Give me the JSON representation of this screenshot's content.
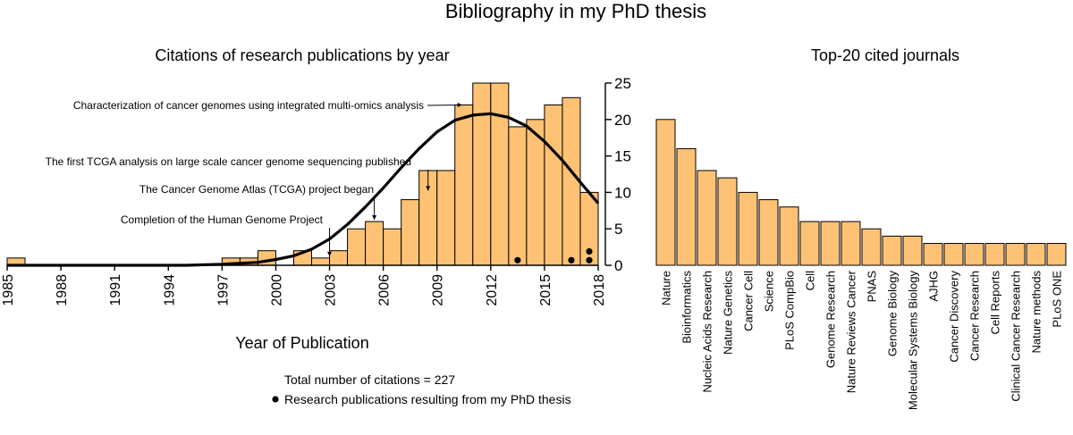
{
  "main_title": "Bibliography in my PhD thesis",
  "chart_data": [
    {
      "type": "bar",
      "title": "Citations of research publications by year",
      "xlabel": "Year of Publication",
      "ylabel": "",
      "x": [
        1985,
        1986,
        1987,
        1988,
        1989,
        1990,
        1991,
        1992,
        1993,
        1994,
        1995,
        1996,
        1997,
        1998,
        1999,
        2000,
        2001,
        2002,
        2003,
        2004,
        2005,
        2006,
        2007,
        2008,
        2009,
        2010,
        2011,
        2012,
        2013,
        2014,
        2015,
        2016,
        2017
      ],
      "values": [
        1,
        0,
        0,
        0,
        0,
        0,
        0,
        0,
        0,
        0,
        0,
        0,
        1,
        1,
        2,
        0,
        2,
        1,
        2,
        5,
        6,
        5,
        9,
        13,
        13,
        22,
        25,
        25,
        19,
        20,
        22,
        23,
        10
      ],
      "xlim": [
        1985,
        2018
      ],
      "ylim": [
        0,
        25
      ],
      "x_tick_labels": [
        "1985",
        "1988",
        "1991",
        "1994",
        "1997",
        "2000",
        "2003",
        "2006",
        "2009",
        "2012",
        "2015",
        "2018"
      ],
      "y_tick_labels": [
        "0",
        "5",
        "10",
        "15",
        "20",
        "25"
      ],
      "y_axis_side": "right",
      "trend_line": {
        "x": [
          1985,
          1990,
          1995,
          1997,
          1999,
          2000,
          2001,
          2002,
          2003,
          2004,
          2005,
          2006,
          2007,
          2008,
          2009,
          2010,
          2011,
          2012,
          2013,
          2014,
          2015,
          2016,
          2017,
          2018
        ],
        "y": [
          0,
          0,
          0,
          0.15,
          0.4,
          0.8,
          1.3,
          2.2,
          3.6,
          5.6,
          8.0,
          10.6,
          13.4,
          16.0,
          18.3,
          19.9,
          20.6,
          20.8,
          20.3,
          19.1,
          17.0,
          14.4,
          11.4,
          8.5
        ]
      },
      "thesis_publications": [
        {
          "x": 2013.5,
          "count": 1
        },
        {
          "x": 2016.5,
          "count": 1
        },
        {
          "x": 2017.5,
          "count": 2
        }
      ],
      "annotations": [
        {
          "text": "Characterization of cancer genomes using integrated multi-omics analysis",
          "x": 2010.5,
          "y": 22
        },
        {
          "text": "The first TCGA analysis on large scale cancer genome sequencing published",
          "x": 2008.5,
          "y": 10
        },
        {
          "text": "The Cancer Genome Atlas (TCGA) project began",
          "x": 2005.5,
          "y": 6
        },
        {
          "text": "Completion of the Human Genome Project",
          "x": 2003.0,
          "y": 1
        }
      ],
      "legend": {
        "total": "Total number of citations = 227",
        "marker_label": "Research publications resulting from my PhD thesis"
      }
    },
    {
      "type": "bar",
      "title": "Top-20 cited journals",
      "xlabel": "",
      "ylabel": "",
      "categories": [
        "Nature",
        "Bioinformatics",
        "Nucleic Acids Research",
        "Nature Genetics",
        "Cancer Cell",
        "Science",
        "PLoS CompBio",
        "Cell",
        "Genome Research",
        "Nature Reviews Cancer",
        "PNAS",
        "Genome Biology",
        "Molecular Systems Biology",
        "AJHG",
        "Cancer Discovery",
        "Cancer Research",
        "Cell Reports",
        "Clinical Cancer Research",
        "Nature methods",
        "PLoS ONE"
      ],
      "values": [
        20,
        16,
        13,
        12,
        10,
        9,
        8,
        6,
        6,
        6,
        5,
        4,
        4,
        3,
        3,
        3,
        3,
        3,
        3,
        3
      ],
      "ylim": [
        0,
        25
      ]
    }
  ],
  "colors": {
    "bar_fill": "#fdc274",
    "bar_stroke": "#000000"
  }
}
